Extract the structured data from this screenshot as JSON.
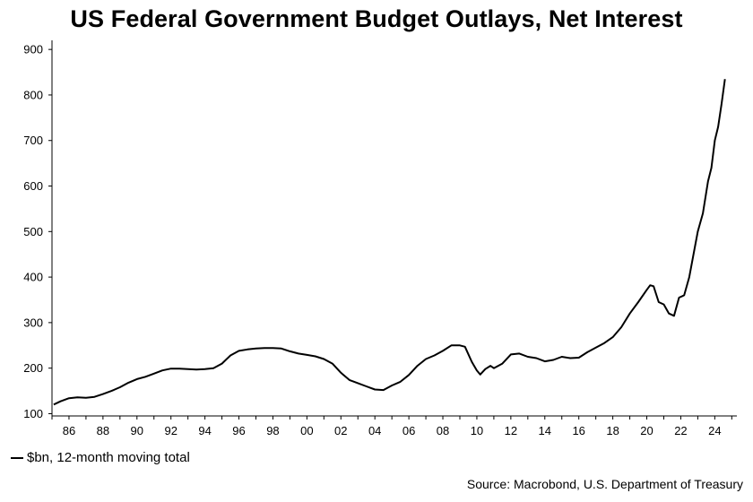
{
  "header": {
    "title": "US Federal Government Budget Outlays, Net Interest"
  },
  "legend": {
    "label": "$bn, 12-month moving total"
  },
  "footer": {
    "source": "Source: Macrobond, U.S. Department of Treasury"
  },
  "colors": {
    "line": "#000000",
    "axis": "#000000"
  },
  "chart_data": {
    "type": "line",
    "title": "US Federal Government Budget Outlays, Net Interest",
    "xlabel": "",
    "ylabel": "",
    "xlim": [
      1985.0,
      2025.3
    ],
    "ylim": [
      95,
      920
    ],
    "y_ticks": [
      100,
      200,
      300,
      400,
      500,
      600,
      700,
      800,
      900
    ],
    "x_ticks": [
      {
        "value": 1986,
        "label": "86"
      },
      {
        "value": 1988,
        "label": "88"
      },
      {
        "value": 1990,
        "label": "90"
      },
      {
        "value": 1992,
        "label": "92"
      },
      {
        "value": 1994,
        "label": "94"
      },
      {
        "value": 1996,
        "label": "96"
      },
      {
        "value": 1998,
        "label": "98"
      },
      {
        "value": 2000,
        "label": "00"
      },
      {
        "value": 2002,
        "label": "02"
      },
      {
        "value": 2004,
        "label": "04"
      },
      {
        "value": 2006,
        "label": "06"
      },
      {
        "value": 2008,
        "label": "08"
      },
      {
        "value": 2010,
        "label": "10"
      },
      {
        "value": 2012,
        "label": "12"
      },
      {
        "value": 2014,
        "label": "14"
      },
      {
        "value": 2016,
        "label": "16"
      },
      {
        "value": 2018,
        "label": "18"
      },
      {
        "value": 2020,
        "label": "20"
      },
      {
        "value": 2022,
        "label": "22"
      },
      {
        "value": 2024,
        "label": "24"
      }
    ],
    "grid": false,
    "legend_position": "bottom-left",
    "series": [
      {
        "name": "$bn, 12-month moving total",
        "x": [
          1985.1,
          1985.5,
          1986.0,
          1986.5,
          1987.0,
          1987.5,
          1988.0,
          1988.5,
          1989.0,
          1989.5,
          1990.0,
          1990.5,
          1991.0,
          1991.5,
          1992.0,
          1992.5,
          1993.0,
          1993.5,
          1994.0,
          1994.5,
          1995.0,
          1995.5,
          1996.0,
          1996.5,
          1997.0,
          1997.5,
          1998.0,
          1998.5,
          1999.0,
          1999.5,
          2000.0,
          2000.5,
          2001.0,
          2001.5,
          2002.0,
          2002.5,
          2003.0,
          2003.5,
          2004.0,
          2004.5,
          2005.0,
          2005.5,
          2006.0,
          2006.5,
          2007.0,
          2007.5,
          2008.0,
          2008.5,
          2009.0,
          2009.3,
          2009.7,
          2010.0,
          2010.2,
          2010.5,
          2010.8,
          2011.0,
          2011.5,
          2012.0,
          2012.5,
          2013.0,
          2013.5,
          2014.0,
          2014.5,
          2015.0,
          2015.5,
          2016.0,
          2016.5,
          2017.0,
          2017.5,
          2018.0,
          2018.5,
          2019.0,
          2019.5,
          2020.0,
          2020.2,
          2020.4,
          2020.7,
          2021.0,
          2021.3,
          2021.6,
          2021.9,
          2022.2,
          2022.5,
          2022.8,
          2023.0,
          2023.3,
          2023.6,
          2023.8,
          2024.0,
          2024.2,
          2024.4,
          2024.6
        ],
        "y": [
          120,
          127,
          134,
          136,
          135,
          137,
          143,
          150,
          158,
          168,
          176,
          181,
          188,
          195,
          199,
          199,
          198,
          197,
          198,
          200,
          210,
          228,
          238,
          241,
          243,
          244,
          244,
          243,
          237,
          232,
          229,
          226,
          220,
          210,
          190,
          174,
          167,
          160,
          153,
          152,
          162,
          170,
          185,
          205,
          220,
          228,
          238,
          250,
          250,
          247,
          214,
          195,
          186,
          198,
          205,
          200,
          210,
          230,
          232,
          225,
          222,
          215,
          218,
          225,
          222,
          223,
          235,
          245,
          255,
          268,
          290,
          320,
          345,
          372,
          382,
          380,
          345,
          340,
          320,
          315,
          355,
          360,
          400,
          460,
          500,
          540,
          610,
          640,
          700,
          730,
          780,
          835
        ]
      }
    ]
  }
}
